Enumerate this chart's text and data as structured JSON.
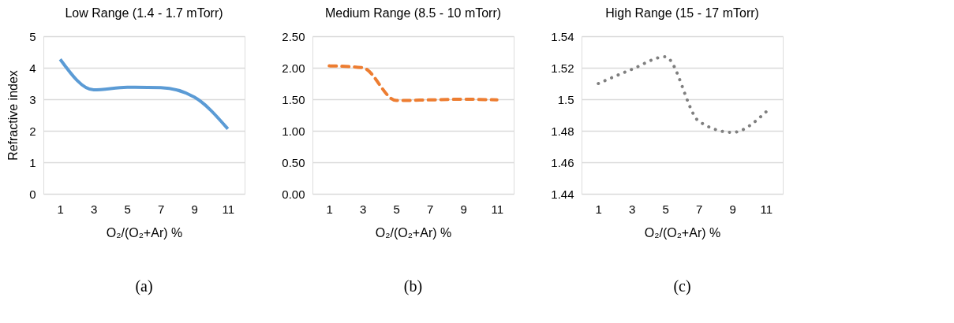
{
  "chart_data": [
    {
      "type": "line",
      "title": "Low Range (1.4 - 1.7 mTorr)",
      "xlabel": "O₂/(O₂+Ar) %",
      "ylabel": "Refractive index",
      "categories": [
        "1",
        "3",
        "5",
        "7",
        "9",
        "11"
      ],
      "series": [
        {
          "color": "#5b9bd5",
          "values": [
            4.27,
            3.3,
            3.38,
            3.37,
            3.07,
            2.06
          ]
        }
      ],
      "ylim": [
        0,
        5
      ],
      "yticks": [
        0,
        1,
        2,
        3,
        4,
        5
      ],
      "grid": "y",
      "line_style": "solid",
      "marker": "none",
      "annotations": [
        "(a)"
      ]
    },
    {
      "type": "line",
      "title": "Medium Range (8.5 - 10 mTorr)",
      "xlabel": "O₂/(O₂+Ar) %",
      "categories": [
        "1",
        "3",
        "5",
        "7",
        "9",
        "11"
      ],
      "series": [
        {
          "color": "#ed7d31",
          "values": [
            2.03,
            2.0,
            1.48,
            1.49,
            1.5,
            1.49
          ]
        }
      ],
      "ylim": [
        0,
        2.5
      ],
      "yticks": [
        {
          "value": 0,
          "label": "0.00"
        },
        {
          "value": 0.5,
          "label": "0.50"
        },
        {
          "value": 1,
          "label": "1.00"
        },
        {
          "value": 1.5,
          "label": "1.50"
        },
        {
          "value": 2,
          "label": "2.00"
        },
        {
          "value": 2.5,
          "label": "2.50"
        }
      ],
      "grid": "y",
      "line_style": "dashed",
      "marker": "none",
      "annotations": [
        "(b)"
      ]
    },
    {
      "type": "line",
      "title": "High Range (15 - 17 mTorr)",
      "xlabel": "O₂/(O₂+Ar) %",
      "categories": [
        "1",
        "3",
        "5",
        "7",
        "9",
        "11"
      ],
      "series": [
        {
          "color": "#7f7f7f",
          "values": [
            1.51,
            1.519,
            1.527,
            1.486,
            1.479,
            1.492
          ]
        }
      ],
      "ylim": [
        1.44,
        1.54
      ],
      "yticks": [
        1.44,
        1.46,
        1.48,
        1.5,
        1.52,
        1.54
      ],
      "grid": "y",
      "line_style": "dotted",
      "marker": "none",
      "annotations": [
        "(c)"
      ]
    }
  ]
}
